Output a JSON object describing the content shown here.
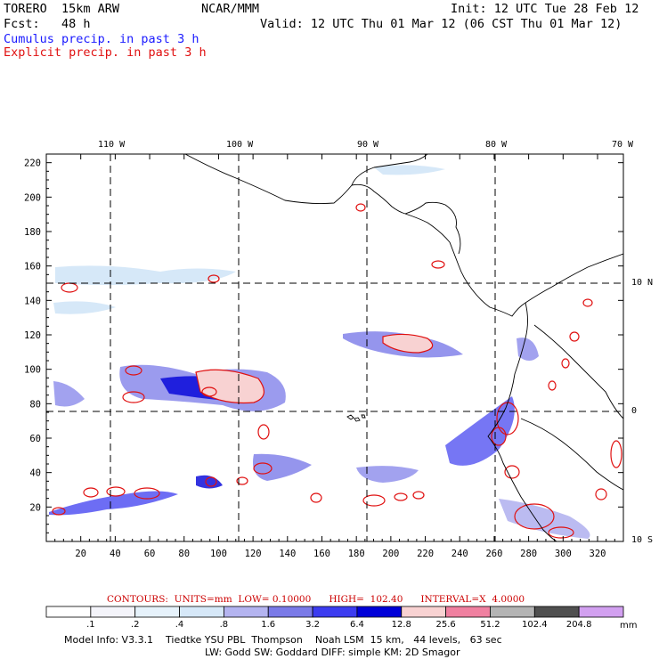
{
  "header": {
    "model": "TORERO  15km ARW",
    "org": "NCAR/MMM",
    "init": "Init: 12 UTC Tue 28 Feb 12",
    "fcst": "Fcst:   48 h",
    "valid": "Valid: 12 UTC Thu 01 Mar 12 (06 CST Thu 01 Mar 12)",
    "cumulus_label": "Cumulus precip. in past 3 h",
    "explicit_label": "Explicit precip. in past 3 h"
  },
  "colors": {
    "cumulus": "#1a1aff",
    "explicit": "#e01010"
  },
  "map": {
    "lon_labels_top": [
      "110 W",
      "100 W",
      "90 W",
      "80 W",
      "70 W"
    ],
    "lat_labels_right": [
      "10 N",
      "0",
      "10 S"
    ],
    "y_ticks": [
      "220",
      "200",
      "180",
      "160",
      "140",
      "120",
      "100",
      "80",
      "60",
      "40",
      "20"
    ],
    "x_ticks": [
      "20",
      "40",
      "60",
      "80",
      "100",
      "120",
      "140",
      "160",
      "180",
      "200",
      "220",
      "240",
      "260",
      "280",
      "300",
      "320"
    ]
  },
  "legend": {
    "title": "CONTOURS:  UNITS=mm  LOW= 0.10000      HIGH=  102.40      INTERVAL=X  4.0000",
    "values": [
      ".1",
      ".2",
      ".4",
      ".8",
      "1.6",
      "3.2",
      "6.4",
      "12.8",
      "25.6",
      "51.2",
      "102.4",
      "204.8"
    ],
    "unit": "mm",
    "colors": [
      "#ffffff",
      "#f4f4fa",
      "#e6f2fb",
      "#d6e8f8",
      "#b4b4f0",
      "#7a7ae8",
      "#3c3cf0",
      "#0000d8",
      "#f8d2d2",
      "#f080a0",
      "#b4b4b4",
      "#505050",
      "#d2a0f0"
    ]
  },
  "footer": {
    "line1": "Model Info: V3.3.1    Tiedtke YSU PBL  Thompson    Noah LSM  15 km,   44 levels,   63 sec",
    "line2": "LW: Godd SW: Goddard DIFF: simple KM: 2D Smagor"
  }
}
